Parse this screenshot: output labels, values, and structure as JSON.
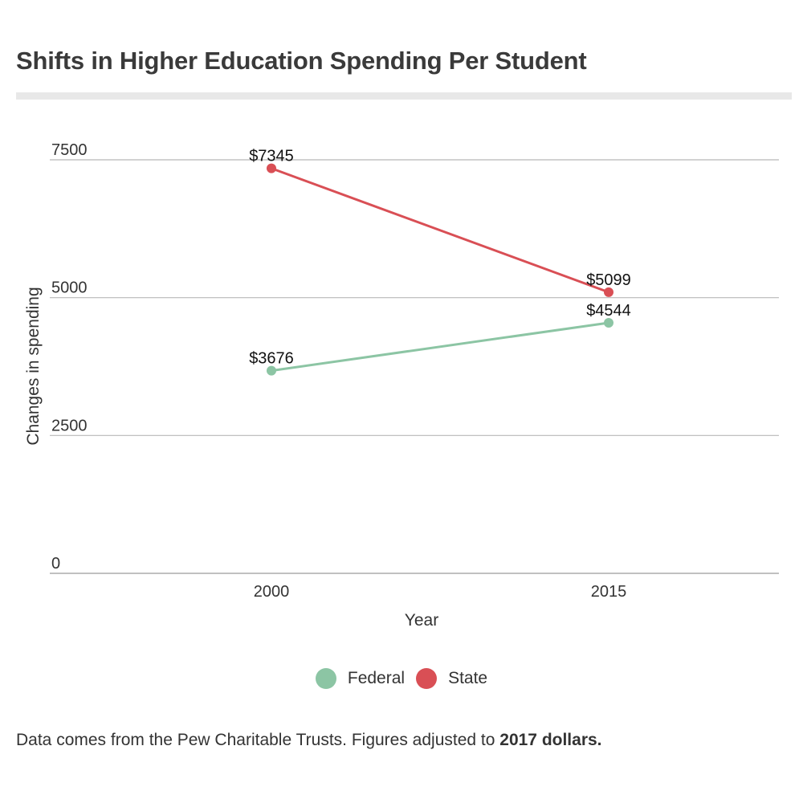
{
  "title": "Shifts in Higher Education Spending Per Student",
  "footer": {
    "text": "Data comes from the Pew Charitable Trusts. Figures adjusted to ",
    "emphasis": "2017 dollars."
  },
  "chart_data": {
    "type": "line",
    "x": [
      "2000",
      "2015"
    ],
    "xlabel": "Year",
    "ylabel": "Changes in spending",
    "ylim": [
      0,
      7500
    ],
    "yticks": [
      "0",
      "2500",
      "5000",
      "7500"
    ],
    "grid": true,
    "legend_position": "bottom",
    "series": [
      {
        "name": "Federal",
        "color": "#8cc5a4",
        "values": [
          3676,
          4544
        ],
        "labels": [
          "$3676",
          "$4544"
        ]
      },
      {
        "name": "State",
        "color": "#d94f55",
        "values": [
          7345,
          5099
        ],
        "labels": [
          "$7345",
          "$5099"
        ]
      }
    ]
  }
}
